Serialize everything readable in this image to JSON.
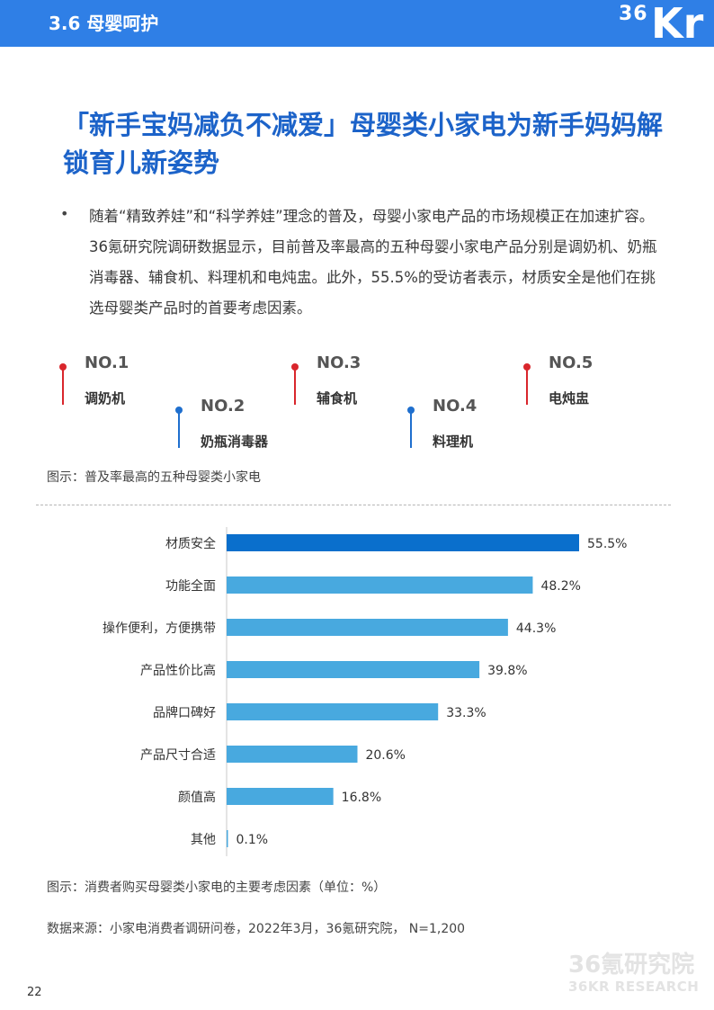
{
  "header": {
    "section_title": "3.6 母婴呵护",
    "logo_text": "36Kr",
    "logo_num": "36",
    "logo_letters": "Kr",
    "bar_color": "#2f7fe6"
  },
  "title": "「新手宝妈减负不减爱」母婴类小家电为新手妈妈解锁育儿新姿势",
  "body": {
    "bullet": "•",
    "paragraph": "随着“精致养娃”和“科学养娃”理念的普及，母婴小家电产品的市场规模正在加速扩容。36氪研究院调研数据显示，目前普及率最高的五种母婴小家电产品分别是调奶机、奶瓶消毒器、辅食机、料理机和电炖盅。此外，55.5%的受访者表示，材质安全是他们在挑选母婴类产品时的首要考虑因素。"
  },
  "ranking": {
    "items": [
      {
        "rank": "NO.1",
        "name": "调奶机",
        "color": "red"
      },
      {
        "rank": "NO.2",
        "name": "奶瓶消毒器",
        "color": "blue"
      },
      {
        "rank": "NO.3",
        "name": "辅食机",
        "color": "red"
      },
      {
        "rank": "NO.4",
        "name": "料理机",
        "color": "blue"
      },
      {
        "rank": "NO.5",
        "name": "电炖盅",
        "color": "red"
      }
    ],
    "caption": "图示：普及率最高的五种母婴类小家电"
  },
  "chart_data": {
    "type": "bar",
    "orientation": "horizontal",
    "categories": [
      "材质安全",
      "功能全面",
      "操作便利，方便携带",
      "产品性价比高",
      "品牌口碑好",
      "产品尺寸合适",
      "颜值高",
      "其他"
    ],
    "values": [
      55.5,
      48.2,
      44.3,
      39.8,
      33.3,
      20.6,
      16.8,
      0.1
    ],
    "value_labels": [
      "55.5%",
      "48.2%",
      "44.3%",
      "39.8%",
      "33.3%",
      "20.6%",
      "16.8%",
      "0.1%"
    ],
    "unit": "%",
    "highlight_color": "#0a6fcc",
    "bar_color": "#48a9df",
    "grid": false,
    "legend": "none"
  },
  "chart_caption": "图示：消费者购买母婴类小家电的主要考虑因素（单位：%）",
  "source": "数据来源：小家电消费者调研问卷，2022年3月，36氪研究院，  N=1,200",
  "watermark": {
    "cn": "36氪研究院",
    "en": "36KR RESEARCH"
  },
  "page_number": "22"
}
